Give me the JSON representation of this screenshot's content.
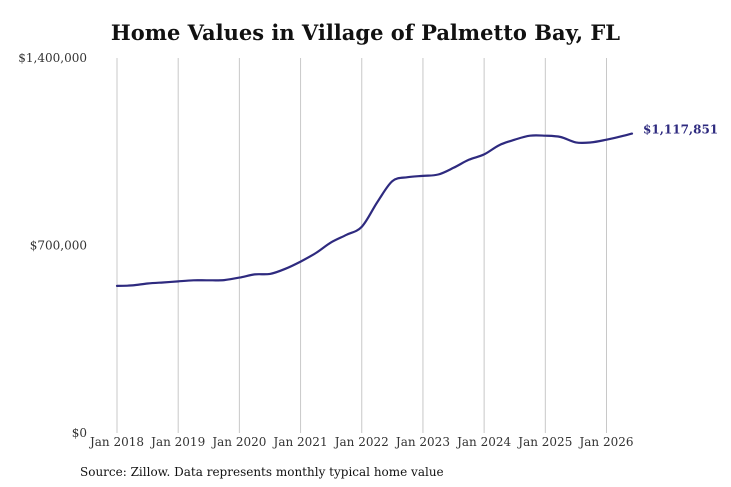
{
  "chart_data": {
    "type": "line",
    "title": "Home Values in Village of Palmetto Bay, FL",
    "xlabel": "",
    "ylabel": "",
    "source_note": "Source: Zillow. Data represents monthly typical home value",
    "x_ticks": [
      "Jan 2018",
      "Jan 2019",
      "Jan 2020",
      "Jan 2021",
      "Jan 2022",
      "Jan 2023",
      "Jan 2024",
      "Jan 2025",
      "Jan 2026"
    ],
    "y_ticks": [
      "$0",
      "$700,000",
      "$1,400,000"
    ],
    "y_tick_values": [
      0,
      700000,
      1400000
    ],
    "xlim": [
      "2018-01",
      "2026-06"
    ],
    "ylim": [
      0,
      1400000
    ],
    "grid": {
      "x": true,
      "y": false
    },
    "line_color": "#2e2a7f",
    "end_label": "$1,117,851",
    "series": [
      {
        "x": [
          "2018-01",
          "2018-04",
          "2018-07",
          "2018-10",
          "2019-01",
          "2019-04",
          "2019-07",
          "2019-10",
          "2020-01",
          "2020-04",
          "2020-07",
          "2020-10",
          "2021-01",
          "2021-04",
          "2021-07",
          "2021-10",
          "2022-01",
          "2022-04",
          "2022-07",
          "2022-10",
          "2023-01",
          "2023-04",
          "2023-07",
          "2023-10",
          "2024-01",
          "2024-04",
          "2024-07",
          "2024-10",
          "2025-01",
          "2025-04",
          "2025-07",
          "2025-10",
          "2026-01",
          "2026-04",
          "2026-06"
        ],
        "values": [
          549000,
          551000,
          558000,
          562000,
          566000,
          570000,
          570000,
          571000,
          580000,
          592000,
          594000,
          613000,
          640000,
          672000,
          712000,
          740000,
          770000,
          860000,
          940000,
          955000,
          960000,
          965000,
          990000,
          1020000,
          1040000,
          1075000,
          1095000,
          1110000,
          1110000,
          1105000,
          1085000,
          1085000,
          1095000,
          1108000,
          1117851
        ]
      }
    ]
  }
}
